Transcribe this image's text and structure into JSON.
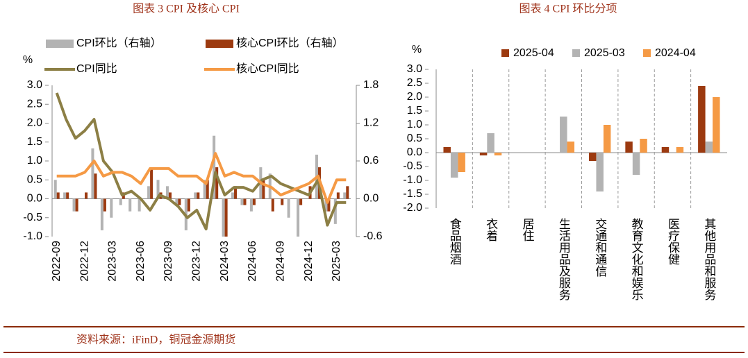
{
  "chart_data": [
    {
      "type": "combo",
      "title": "图表 3 CPI 及核心 CPI",
      "ylabel": "%",
      "categories": [
        "2022-09",
        null,
        null,
        "2022-12",
        null,
        null,
        "2023-03",
        null,
        null,
        "2023-06",
        null,
        null,
        "2023-09",
        null,
        null,
        "2023-12",
        null,
        null,
        "2024-03",
        null,
        null,
        "2024-06",
        null,
        null,
        "2024-09",
        null,
        null,
        "2024-12",
        null,
        null,
        "2025-03",
        null
      ],
      "ylim": [
        -1,
        3
      ],
      "yticks": [
        {
          "value": 3,
          "label": "3.0"
        },
        2.5,
        {
          "value": 2,
          "label": "2.0"
        },
        1.5,
        {
          "value": 1,
          "label": "1.0"
        },
        0.5,
        {
          "value": 0,
          "label": "0.0"
        },
        -0.5,
        {
          "value": -1,
          "label": "-1.0"
        }
      ],
      "y2lim": [
        -0.6,
        1.8
      ],
      "y2ticks": [
        1.8,
        1.2,
        0.6,
        {
          "value": 0,
          "label": "0.0"
        },
        -0.6
      ],
      "series": [
        {
          "name": "CPI环比（右轴）",
          "type": "bar",
          "axis": "y2",
          "color": "#b3b3b3",
          "values": [
            0.3,
            0.1,
            -0.2,
            0.0,
            0.8,
            -0.5,
            -0.3,
            -0.1,
            -0.2,
            -0.2,
            0.2,
            0.3,
            0.2,
            -0.1,
            -0.5,
            0.1,
            0.3,
            1.0,
            -0.6,
            0.1,
            -0.1,
            -0.2,
            0.5,
            0.4,
            0.0,
            -0.3,
            -0.6,
            0.0,
            0.7,
            -0.2,
            -0.4,
            0.1
          ]
        },
        {
          "name": "核心CPI环比（右轴）",
          "type": "bar",
          "axis": "y2",
          "color": "#9c3a10",
          "values": [
            0.1,
            0.1,
            -0.2,
            0.1,
            0.4,
            -0.2,
            0.0,
            0.1,
            0.0,
            0.0,
            0.5,
            0.1,
            0.1,
            -0.1,
            -0.2,
            0.1,
            0.3,
            0.5,
            -0.6,
            0.2,
            -0.1,
            -0.1,
            0.3,
            -0.2,
            -0.1,
            0.0,
            -0.1,
            0.2,
            0.5,
            -0.2,
            0.1,
            0.2
          ]
        },
        {
          "name": "CPI同比",
          "type": "line",
          "color": "#8c7f45",
          "values": [
            2.8,
            2.1,
            1.6,
            1.8,
            2.1,
            1.0,
            0.7,
            0.1,
            0.2,
            0.0,
            -0.3,
            0.1,
            0.0,
            -0.2,
            -0.5,
            -0.3,
            -0.8,
            0.7,
            0.1,
            0.3,
            0.3,
            0.2,
            0.5,
            0.6,
            0.4,
            0.3,
            0.2,
            0.1,
            0.5,
            -0.7,
            -0.1,
            -0.1
          ]
        },
        {
          "name": "核心CPI同比",
          "type": "line",
          "color": "#f59a45",
          "values": [
            0.6,
            0.6,
            0.6,
            0.7,
            1.0,
            0.6,
            0.7,
            0.7,
            0.6,
            0.4,
            0.8,
            0.8,
            0.8,
            0.6,
            0.6,
            0.6,
            0.4,
            1.2,
            0.6,
            0.7,
            0.6,
            0.6,
            0.4,
            0.3,
            0.1,
            0.2,
            0.3,
            0.4,
            0.6,
            -0.1,
            0.5,
            0.5
          ]
        }
      ]
    },
    {
      "type": "bar",
      "title": "图表 4 CPI 环比分项",
      "ylabel": "%",
      "categories": [
        "食品烟酒",
        "衣着",
        "居住",
        "生活用品及服务",
        "交通和通信",
        "教育文化和娱乐",
        "医疗保健",
        "其他用品和服务"
      ],
      "ylim": [
        -2,
        3
      ],
      "yticks": [
        {
          "value": 3,
          "label": "3.0"
        },
        2.5,
        {
          "value": 2,
          "label": "2.0"
        },
        1.5,
        {
          "value": 1,
          "label": "1.0"
        },
        0.5,
        {
          "value": 0,
          "label": "0.0"
        },
        -0.5,
        {
          "value": -1,
          "label": "-1.0"
        },
        -1.5,
        {
          "value": -2,
          "label": "-2.0"
        }
      ],
      "series": [
        {
          "name": "2025-04",
          "color": "#9c3a10",
          "values": [
            0.2,
            -0.1,
            0,
            0,
            -0.3,
            0.4,
            0.2,
            2.4
          ]
        },
        {
          "name": "2025-03",
          "color": "#b3b3b3",
          "values": [
            -0.9,
            0.7,
            0,
            1.3,
            -1.4,
            -0.8,
            0,
            0.4
          ]
        },
        {
          "name": "2024-04",
          "color": "#f59a45",
          "values": [
            -0.7,
            -0.1,
            0,
            0.4,
            1.0,
            0.5,
            0.2,
            2.0
          ]
        }
      ]
    }
  ],
  "source": "资料来源：iFinD，铜冠金源期货"
}
